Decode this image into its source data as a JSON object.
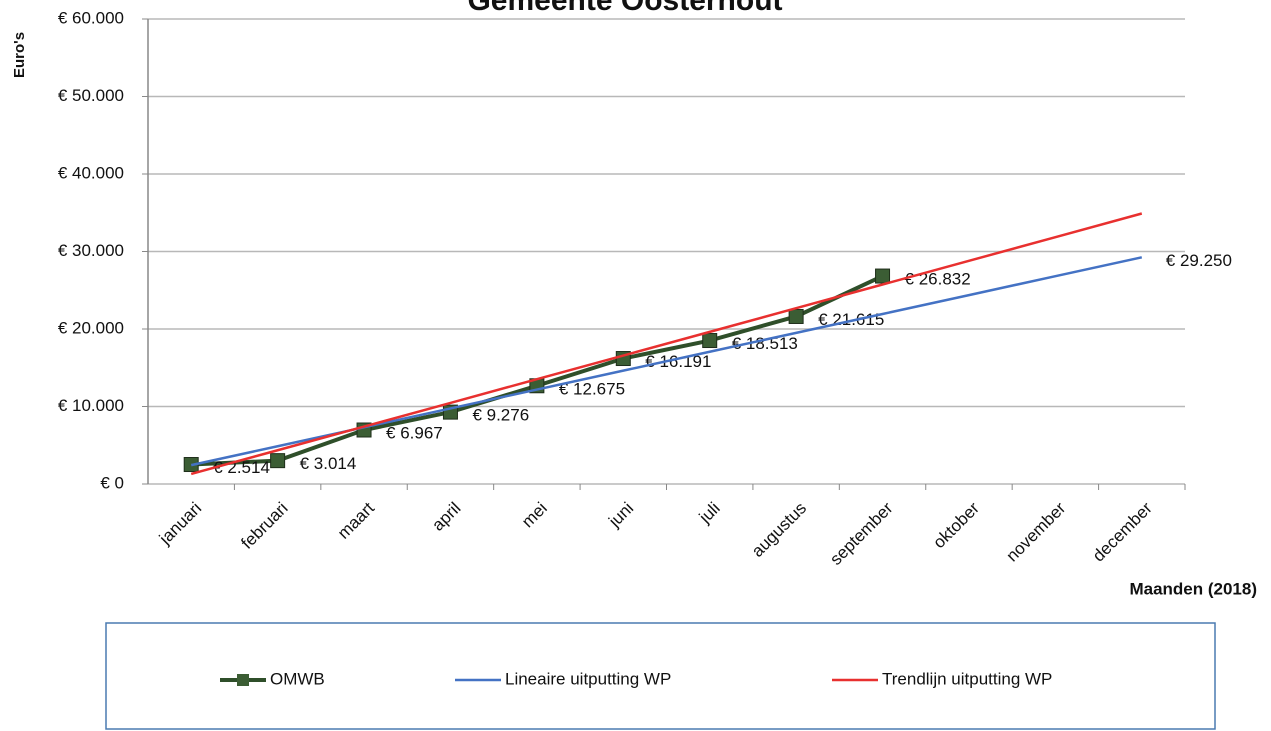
{
  "chart_data": {
    "type": "line",
    "title": "Gemeente Oosterhout",
    "y_label": "Euro's",
    "x_label": "Maanden (2018)",
    "categories": [
      "januari",
      "februari",
      "maart",
      "april",
      "mei",
      "juni",
      "juli",
      "augustus",
      "september",
      "oktober",
      "november",
      "december"
    ],
    "series": [
      {
        "name": "OMWB",
        "color": "#2f4f2a",
        "values": [
          2514,
          3014,
          6967,
          9276,
          12675,
          16191,
          18513,
          21615,
          26832,
          null,
          null,
          null
        ],
        "value_labels": [
          "€ 2.514",
          "€ 3.014",
          "€ 6.967",
          "€ 9.276",
          "€ 12.675",
          "€ 16.191",
          "€ 18.513",
          "€ 21.615",
          "€ 26.832",
          null,
          null,
          null
        ]
      },
      {
        "name": "Lineaire uitputting WP",
        "color": "#4472c4",
        "values": [
          2437.5,
          4875,
          7312.5,
          9750,
          12187.5,
          14625,
          17062.5,
          19500,
          21937.5,
          24375,
          26812.5,
          29250
        ],
        "value_labels": [
          null,
          null,
          null,
          null,
          null,
          null,
          null,
          null,
          null,
          null,
          null,
          "€ 29.250"
        ]
      },
      {
        "name": "Trendlijn uitputting WP",
        "color": "#e8302f",
        "values": [
          1300,
          4355,
          7410,
          10465,
          13520,
          16575,
          19630,
          22685,
          25740,
          28795,
          31850,
          34905
        ]
      }
    ],
    "ylim": [
      0,
      60000
    ],
    "yticks": [
      {
        "value": 0,
        "label": "€ 0"
      },
      {
        "value": 10000,
        "label": "€ 10.000"
      },
      {
        "value": 20000,
        "label": "€ 20.000"
      },
      {
        "value": 30000,
        "label": "€ 30.000"
      },
      {
        "value": 40000,
        "label": "€ 40.000"
      },
      {
        "value": 50000,
        "label": "€ 50.000"
      },
      {
        "value": 60000,
        "label": "€ 60.000"
      }
    ],
    "grid": true
  }
}
